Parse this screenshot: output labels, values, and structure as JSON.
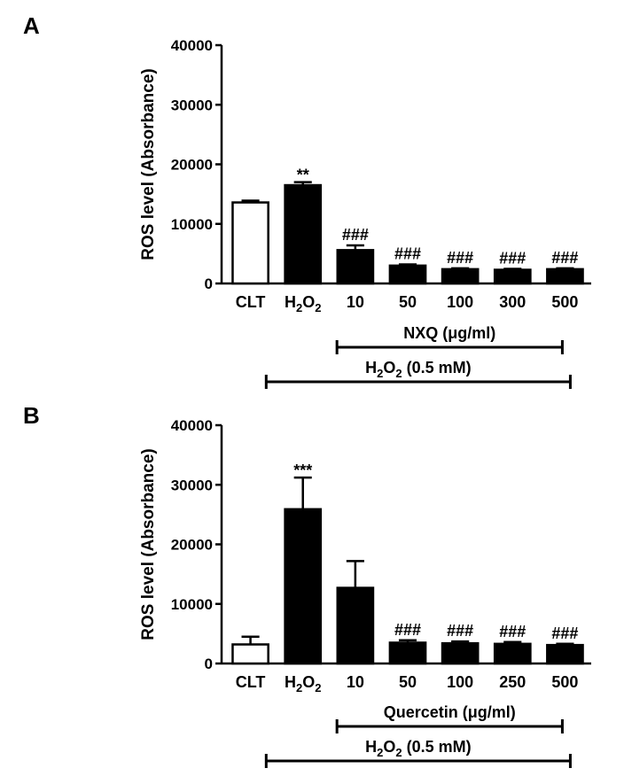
{
  "chart_data": [
    {
      "type": "bar",
      "panel": "A",
      "ylabel": "ROS level (Absorbance)",
      "ylim": [
        0,
        40000
      ],
      "yticks": [
        "0",
        "10000",
        "20000",
        "30000",
        "40000"
      ],
      "categories": [
        "CLT",
        "H2O2",
        "10",
        "50",
        "100",
        "300",
        "500"
      ],
      "values": [
        13600,
        16500,
        5600,
        3000,
        2400,
        2300,
        2400
      ],
      "errors": [
        300,
        500,
        800,
        200,
        150,
        150,
        150
      ],
      "fills": [
        "#ffffff",
        "#000000",
        "#000000",
        "#000000",
        "#000000",
        "#000000",
        "#000000"
      ],
      "annotations": [
        "",
        "**",
        "###",
        "###",
        "###",
        "###",
        "###"
      ],
      "brackets": [
        {
          "label": "NXQ (μg/ml)",
          "from": 2,
          "to": 6
        },
        {
          "label": "H2O2 (0.5 mM)",
          "from": 1,
          "to": 6
        }
      ]
    },
    {
      "type": "bar",
      "panel": "B",
      "ylabel": "ROS level (Absorbance)",
      "ylim": [
        0,
        40000
      ],
      "yticks": [
        "0",
        "10000",
        "20000",
        "30000",
        "40000"
      ],
      "categories": [
        "CLT",
        "H2O2",
        "10",
        "50",
        "100",
        "250",
        "500"
      ],
      "values": [
        3200,
        25900,
        12700,
        3500,
        3400,
        3300,
        3100
      ],
      "errors": [
        1300,
        5300,
        4500,
        400,
        300,
        300,
        200
      ],
      "fills": [
        "#ffffff",
        "#000000",
        "#000000",
        "#000000",
        "#000000",
        "#000000",
        "#000000"
      ],
      "annotations": [
        "",
        "***",
        "",
        "###",
        "###",
        "###",
        "###"
      ],
      "brackets": [
        {
          "label": "Quercetin (μg/ml)",
          "from": 2,
          "to": 6
        },
        {
          "label": "H2O2 (0.5 mM)",
          "from": 1,
          "to": 6
        }
      ]
    }
  ]
}
